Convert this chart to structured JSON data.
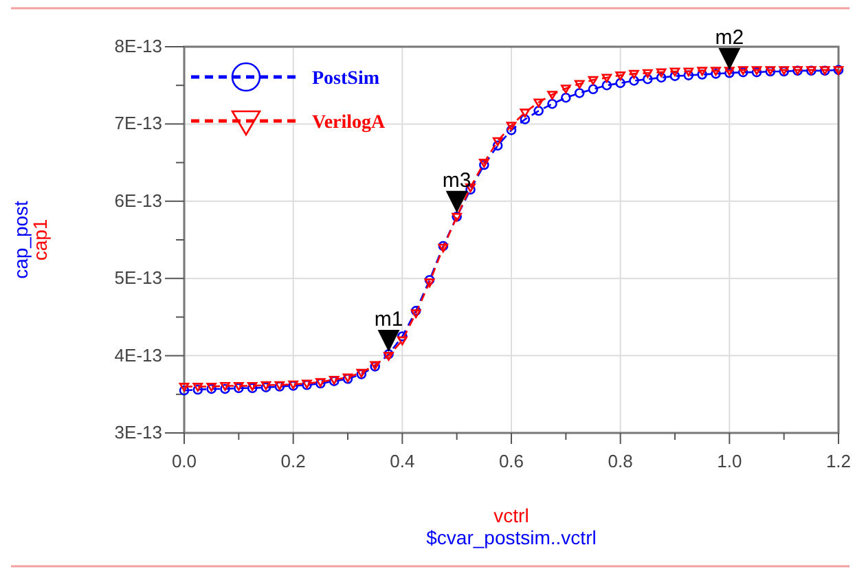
{
  "chart_data": {
    "type": "line",
    "xlabel": [
      "vctrl",
      "$cvar_postsim..vctrl"
    ],
    "ylabel": [
      "cap_post",
      "cap1"
    ],
    "xlim": [
      0,
      1.2
    ],
    "ylim": [
      3e-13,
      8e-13
    ],
    "xticks": [
      {
        "value": 0,
        "label": "0.0"
      },
      {
        "value": 0.1,
        "label": null
      },
      {
        "value": 0.2,
        "label": "0.2"
      },
      {
        "value": 0.3,
        "label": null
      },
      {
        "value": 0.4,
        "label": "0.4"
      },
      {
        "value": 0.5,
        "label": null
      },
      {
        "value": 0.6,
        "label": "0.6"
      },
      {
        "value": 0.7,
        "label": null
      },
      {
        "value": 0.8,
        "label": "0.8"
      },
      {
        "value": 0.9,
        "label": null
      },
      {
        "value": 1,
        "label": "1.0"
      },
      {
        "value": 1.1,
        "label": null
      },
      {
        "value": 1.2,
        "label": "1.2"
      }
    ],
    "yticks": [
      {
        "value": 3e-13,
        "label": "3E-13"
      },
      {
        "value": 3.5e-13,
        "label": null
      },
      {
        "value": 4e-13,
        "label": "4E-13"
      },
      {
        "value": 4.5e-13,
        "label": null
      },
      {
        "value": 5e-13,
        "label": "5E-13"
      },
      {
        "value": 5.5e-13,
        "label": null
      },
      {
        "value": 6e-13,
        "label": "6E-13"
      },
      {
        "value": 6.5e-13,
        "label": null
      },
      {
        "value": 7e-13,
        "label": "7E-13"
      },
      {
        "value": 7.5e-13,
        "label": null
      },
      {
        "value": 8e-13,
        "label": "8E-13"
      }
    ],
    "grid": true,
    "legend": "top left",
    "line_style": "dashed",
    "x": [
      0,
      0.025,
      0.05,
      0.075,
      0.1,
      0.125,
      0.15,
      0.175,
      0.2,
      0.225,
      0.25,
      0.275,
      0.3,
      0.325,
      0.35,
      0.375,
      0.4,
      0.425,
      0.45,
      0.475,
      0.5,
      0.525,
      0.55,
      0.575,
      0.6,
      0.625,
      0.65,
      0.675,
      0.7,
      0.725,
      0.75,
      0.775,
      0.8,
      0.825,
      0.85,
      0.875,
      0.9,
      0.925,
      0.95,
      0.975,
      1,
      1.025,
      1.05,
      1.075,
      1.1,
      1.125,
      1.15,
      1.175,
      1.2
    ],
    "series": [
      {
        "name": "PostSim",
        "color": "#0000ff",
        "marker": "circle",
        "values": [
          3.55e-13,
          3.56e-13,
          3.57e-13,
          3.57e-13,
          3.58e-13,
          3.58e-13,
          3.59e-13,
          3.6e-13,
          3.61e-13,
          3.62e-13,
          3.64e-13,
          3.67e-13,
          3.7e-13,
          3.76e-13,
          3.86e-13,
          4.02e-13,
          4.25e-13,
          4.58e-13,
          4.98e-13,
          5.42e-13,
          5.8e-13,
          6.15e-13,
          6.47e-13,
          6.72e-13,
          6.92e-13,
          7.06e-13,
          7.17e-13,
          7.26e-13,
          7.34e-13,
          7.4e-13,
          7.45e-13,
          7.5e-13,
          7.53e-13,
          7.56e-13,
          7.58e-13,
          7.6e-13,
          7.62e-13,
          7.63e-13,
          7.64e-13,
          7.65e-13,
          7.66e-13,
          7.67e-13,
          7.67e-13,
          7.68e-13,
          7.68e-13,
          7.69e-13,
          7.69e-13,
          7.69e-13,
          7.7e-13
        ]
      },
      {
        "name": "VerilogA",
        "color": "#ff0000",
        "marker": "triangle",
        "values": [
          3.6e-13,
          3.6e-13,
          3.6e-13,
          3.61e-13,
          3.61e-13,
          3.61e-13,
          3.62e-13,
          3.62e-13,
          3.63e-13,
          3.64e-13,
          3.66e-13,
          3.69e-13,
          3.72e-13,
          3.78e-13,
          3.88e-13,
          4e-13,
          4.2e-13,
          4.55e-13,
          4.95e-13,
          5.4e-13,
          5.8e-13,
          6.18e-13,
          6.5e-13,
          6.78e-13,
          6.98e-13,
          7.15e-13,
          7.28e-13,
          7.38e-13,
          7.46e-13,
          7.52e-13,
          7.57e-13,
          7.6e-13,
          7.63e-13,
          7.65e-13,
          7.66e-13,
          7.67e-13,
          7.68e-13,
          7.68e-13,
          7.69e-13,
          7.69e-13,
          7.69e-13,
          7.7e-13,
          7.7e-13,
          7.7e-13,
          7.7e-13,
          7.7e-13,
          7.7e-13,
          7.7e-13,
          7.7e-13
        ]
      }
    ],
    "annotations": [
      {
        "text": "m1",
        "x": 0.375,
        "y": 4.05e-13
      },
      {
        "text": "m3",
        "x": 0.5,
        "y": 5.85e-13
      },
      {
        "text": "m2",
        "x": 1,
        "y": 7.7e-13
      }
    ]
  }
}
